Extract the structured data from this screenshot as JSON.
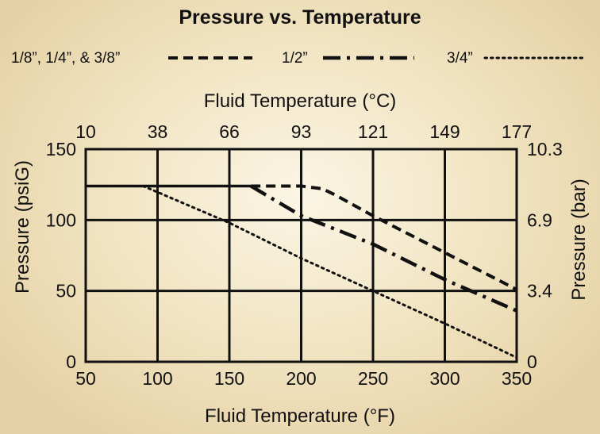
{
  "chart_data": {
    "type": "line",
    "title": "Pressure vs. Temperature",
    "xlabel": "Fluid Temperature (°F)",
    "x2label": "Fluid Temperature (°C)",
    "ylabel": "Pressure (psiG)",
    "y2label": "Pressure (bar)",
    "xlim": [
      50,
      350
    ],
    "ylim": [
      0,
      150
    ],
    "x_ticks": [
      "50",
      "100",
      "150",
      "200",
      "250",
      "300",
      "350"
    ],
    "x2_ticks": [
      "10",
      "38",
      "66",
      "93",
      "121",
      "149",
      "177"
    ],
    "y_ticks": [
      "0",
      "50",
      "100",
      "150"
    ],
    "y2_ticks": [
      "0",
      "3.4",
      "6.9",
      "10.3"
    ],
    "grid": true,
    "legend_position": "top",
    "series": [
      {
        "name": "1/8”, 1/4”, & 3/8”",
        "style": "dashed",
        "x": [
          50,
          165,
          200,
          215,
          225,
          250,
          300,
          350
        ],
        "y": [
          124,
          124,
          124,
          122,
          117,
          103,
          77,
          51
        ]
      },
      {
        "name": "1/2”",
        "style": "dash-dot",
        "x": [
          50,
          165,
          200,
          250,
          300,
          350
        ],
        "y": [
          124,
          124,
          103,
          83,
          58,
          36
        ]
      },
      {
        "name": "3/4”",
        "style": "dotted",
        "x": [
          50,
          90,
          150,
          200,
          250,
          300,
          350
        ],
        "y": [
          124,
          124,
          98,
          73,
          50,
          27,
          3
        ]
      }
    ]
  }
}
